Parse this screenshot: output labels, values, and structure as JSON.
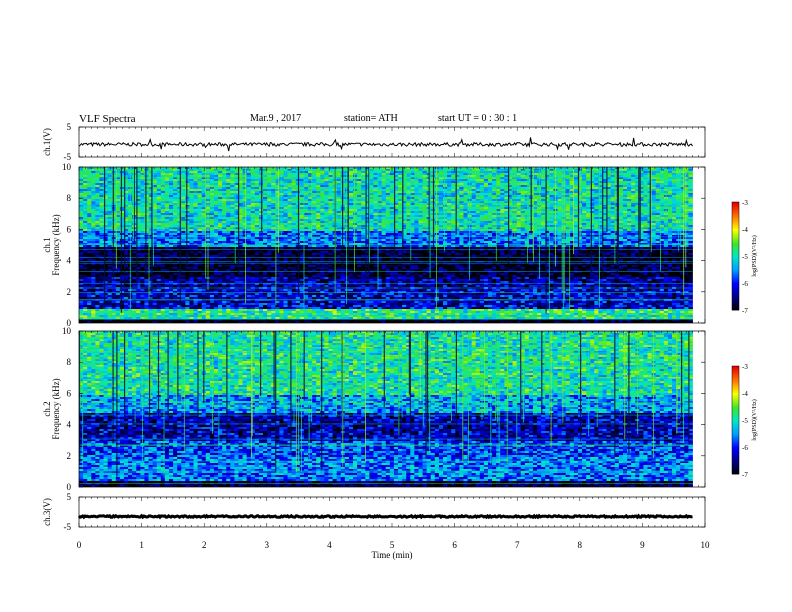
{
  "header": {
    "title": "VLF  Spectra",
    "date": "Mar.9  , 2017",
    "station": "station= ATH",
    "start": "start  UT  =    0  : 30 : 1"
  },
  "chart_data": [
    {
      "type": "line",
      "panel": "ch1-waveform",
      "ylabel": "ch.1(V)",
      "ylim": [
        -5,
        5
      ],
      "yticks": [
        "5",
        "-5"
      ],
      "xlim": [
        0,
        10
      ],
      "data_end_min": 9.8,
      "baseline_v": -0.8,
      "color": "#000000"
    },
    {
      "type": "heatmap",
      "panel": "ch1-spectrogram",
      "ylabel": [
        "ch.1",
        "Frequency  (kHz)"
      ],
      "ylim": [
        0,
        10
      ],
      "yticks": [
        "0",
        "2",
        "4",
        "6",
        "8",
        "10"
      ],
      "xlim": [
        0,
        10
      ],
      "data_end_min": 9.8,
      "colorbar": {
        "label": "log(PSD)(V²/Hz)",
        "range": [
          -7,
          -3
        ],
        "ticks": [
          "-3",
          "-4",
          "-5",
          "-6",
          "-7"
        ]
      },
      "bands": [
        {
          "f": [
            0,
            0.3
          ],
          "level": -7
        },
        {
          "f": [
            0.3,
            1.0
          ],
          "level": -4.8
        },
        {
          "f": [
            1.0,
            2.4
          ],
          "level": -6.2
        },
        {
          "f": [
            2.4,
            3.0
          ],
          "level": -6.4
        },
        {
          "f": [
            3.0,
            5.0
          ],
          "level": -6.9
        },
        {
          "f": [
            5.0,
            6.0
          ],
          "level": -5.6
        },
        {
          "f": [
            6.0,
            10.0
          ],
          "level": -5.0
        }
      ]
    },
    {
      "type": "heatmap",
      "panel": "ch2-spectrogram",
      "ylabel": [
        "ch.2",
        "Frequency  (kHz)"
      ],
      "ylim": [
        0,
        10
      ],
      "yticks": [
        "0",
        "2",
        "4",
        "6",
        "8",
        "10"
      ],
      "xlim": [
        0,
        10
      ],
      "data_end_min": 9.8,
      "colorbar": {
        "label": "log(PSD)(V²/Hz)",
        "range": [
          -7,
          -3
        ],
        "ticks": [
          "-3",
          "-4",
          "-5",
          "-6",
          "-7"
        ]
      },
      "bands": [
        {
          "f": [
            0,
            0.4
          ],
          "level": -6.8
        },
        {
          "f": [
            0.4,
            2.0
          ],
          "level": -5.6
        },
        {
          "f": [
            2.0,
            3.0
          ],
          "level": -5.8
        },
        {
          "f": [
            3.0,
            4.8
          ],
          "level": -6.3
        },
        {
          "f": [
            4.8,
            6.0
          ],
          "level": -5.4
        },
        {
          "f": [
            6.0,
            10.0
          ],
          "level": -4.9
        }
      ]
    },
    {
      "type": "line",
      "panel": "ch3-waveform",
      "ylabel": "ch.3(V)",
      "ylim": [
        -5,
        5
      ],
      "yticks": [
        "5",
        "-5"
      ],
      "xlim": [
        0,
        10
      ],
      "xticks": [
        "0",
        "1",
        "2",
        "3",
        "4",
        "5",
        "6",
        "7",
        "8",
        "9",
        "10"
      ],
      "xlabel": "Time  (min)",
      "data_end_min": 9.8,
      "baseline_v": -1.5,
      "color": "#000000"
    }
  ]
}
